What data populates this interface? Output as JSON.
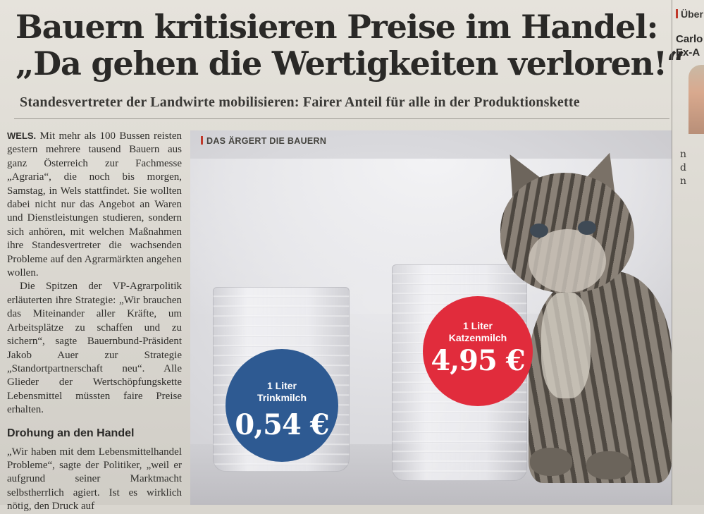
{
  "headline": {
    "line1": "Bauern kritisieren Preise im Handel:",
    "line2": "„Da gehen die Wertigkeiten verloren!“"
  },
  "subhead": "Standesvertreter der Landwirte mobilisieren: Fairer Anteil für alle in der Produktionskette",
  "article": {
    "dateline": "WELS.",
    "para1": "Mit mehr als 100 Bussen reisten gestern mehrere tausend Bauern aus ganz Österreich zur Fachmesse „Agraria“, die noch bis morgen, Samstag, in Wels stattfindet. Sie wollten dabei nicht nur das Angebot an Waren und Dienstleistungen studieren, sondern sich anhören, mit welchen Maßnahmen ihre Standesvertreter die wachsenden Probleme auf den Agrarmärkten angehen wollen.",
    "para2": "Die Spitzen der VP-Agrarpolitik erläuterten ihre Strategie: „Wir brauchen das Miteinander aller Kräfte, um Arbeitsplätze zu schaffen und zu sichern“, sagte Bauernbund-Präsident Jakob Auer zur Strategie „Standortpartnerschaft neu“. Alle Glieder der Wertschöpfungskette Lebensmittel müssten faire Preise erhalten.",
    "crosshead": "Drohung an den Handel",
    "para3": "„Wir haben mit dem Lebensmittelhandel Probleme“, sagte der Politiker, „weil er aufgrund seiner Marktmacht selbstherrlich agiert. Ist es wirklich nötig, den Druck auf"
  },
  "photo": {
    "label": "DAS ÄRGERT DIE BAUERN",
    "badge_blue": {
      "line1": "1 Liter",
      "line2": "Trinkmilch",
      "price": "0,54 €"
    },
    "badge_red": {
      "line1": "1 Liter",
      "line2": "Katzenmilch",
      "price": "4,95 €"
    }
  },
  "right_column": {
    "tag": "Über",
    "name_line1": "Carlo",
    "name_line2": "Ex-A",
    "text_line1": "n",
    "text_line2": "d",
    "text_line3": "n"
  },
  "colors": {
    "badge_blue": "#2e5a92",
    "badge_red": "#e12c3c",
    "accent_bar": "#c0392b"
  }
}
